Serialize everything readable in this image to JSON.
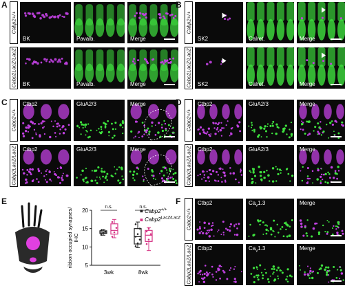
{
  "panels": {
    "A": {
      "letter": "A",
      "rows": [
        {
          "genotype": "Cabp2+/+",
          "tiles": [
            "BK",
            "Pavalb.",
            "Merge"
          ]
        },
        {
          "genotype": "Cabp2LacZ/LacZ",
          "tiles": [
            "BK",
            "Pavalb.",
            "Merge"
          ]
        }
      ]
    },
    "B": {
      "letter": "B",
      "rows": [
        {
          "genotype": "Cabp2+/+",
          "tiles": [
            "SK2",
            "Calret.",
            "Merge"
          ]
        },
        {
          "genotype": "Cabp2LacZ/LacZ",
          "tiles": [
            "SK2",
            "Calret.",
            "Merge"
          ]
        }
      ]
    },
    "C": {
      "letter": "C",
      "rows": [
        {
          "genotype": "Cabp2+/+",
          "tiles": [
            "Ctbp2",
            "GluA2/3",
            "Merge"
          ]
        },
        {
          "genotype": "Cabp2LacZ/LacZ",
          "tiles": [
            "Ctbp2",
            "GluA2/3",
            "Merge"
          ]
        }
      ]
    },
    "D": {
      "letter": "D",
      "rows": [
        {
          "genotype": "Cabp2+/+",
          "tiles": [
            "Ctbp2",
            "GluA2/3",
            "Merge"
          ]
        },
        {
          "genotype": "Cabp2LacZ/LacZ",
          "tiles": [
            "Ctbp2",
            "GluA2/3",
            "Merge"
          ]
        }
      ]
    },
    "E": {
      "letter": "E"
    },
    "F": {
      "letter": "F",
      "rows": [
        {
          "genotype": "Cabp2+/+",
          "tiles": [
            "Ctbp2",
            "Ca",
            "Merge"
          ]
        },
        {
          "genotype": "Cabp2LacZ/LacZ",
          "tiles": [
            "Ctbp2",
            "Ca",
            "Merge"
          ]
        }
      ]
    }
  },
  "chart_data": {
    "type": "box",
    "ylabel": "ribbon occupied synapses/ IHC",
    "categories": [
      "3wk",
      "8wk"
    ],
    "ylim": [
      5,
      20
    ],
    "yticks": [
      5,
      10,
      15,
      20
    ],
    "significance": [
      "n.s.",
      "n.s."
    ],
    "series": [
      {
        "name": "Cabp2+/+",
        "color": "#222222",
        "boxes": [
          {
            "min": 13.2,
            "q1": 13.7,
            "median": 14.0,
            "q3": 14.4,
            "max": 14.8,
            "points": [
              13.3,
              13.8,
              14.1,
              14.5
            ]
          },
          {
            "min": 9.8,
            "q1": 10.8,
            "median": 12.8,
            "q3": 15.0,
            "max": 16.8,
            "points": [
              10.2,
              11.0,
              12.0,
              12.8,
              13.5,
              15.0,
              16.2
            ]
          }
        ]
      },
      {
        "name": "Cabp2LacZ/LacZ",
        "color": "#d63384",
        "boxes": [
          {
            "min": 12.5,
            "q1": 13.5,
            "median": 14.5,
            "q3": 16.3,
            "max": 17.5,
            "points": [
              12.8,
              14.0,
              15.2,
              16.8
            ]
          },
          {
            "min": 9.0,
            "q1": 11.5,
            "median": 13.2,
            "q3": 14.5,
            "max": 15.3,
            "points": [
              10.8,
              12.0,
              13.5,
              14.2,
              15.0
            ]
          }
        ]
      }
    ]
  },
  "legend": {
    "wt_base": "Cabp2",
    "wt_sup": "+/+",
    "ko_base": "Cabp2",
    "ko_sup": "LacZ/LacZ"
  },
  "colors": {
    "magenta": "#c040e0",
    "green": "#3ee03e",
    "pink": "#d63384"
  }
}
